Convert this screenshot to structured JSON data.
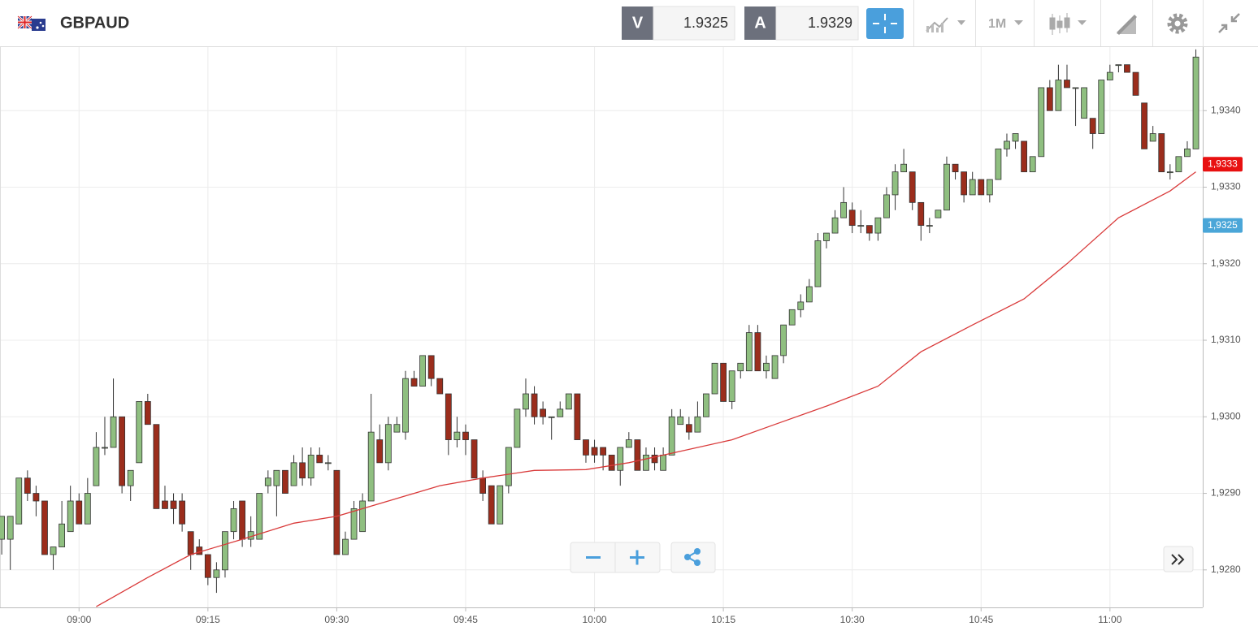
{
  "toolbar": {
    "symbol": "GBPAUD",
    "sell": {
      "label": "V",
      "price": "1.9325"
    },
    "buy": {
      "label": "A",
      "price": "1.9329"
    },
    "timeframe": "1M"
  },
  "chart_data": {
    "type": "candlestick",
    "categories": [
      null,
      null,
      null,
      null,
      null,
      null,
      null,
      null,
      null,
      "09:00",
      null,
      null,
      null,
      null,
      null,
      null,
      null,
      null,
      null,
      null,
      null,
      null,
      null,
      null,
      "09:15",
      null,
      null,
      null,
      null,
      null,
      null,
      null,
      null,
      null,
      null,
      null,
      null,
      null,
      null,
      "09:30",
      null,
      null,
      null,
      null,
      null,
      null,
      null,
      null,
      null,
      null,
      null,
      null,
      null,
      null,
      "09:45",
      null,
      null,
      null,
      null,
      null,
      null,
      null,
      null,
      null,
      null,
      null,
      null,
      null,
      null,
      "10:00",
      null,
      null,
      null,
      null,
      null,
      null,
      null,
      null,
      null,
      null,
      null,
      null,
      null,
      null,
      "10:15",
      null,
      null,
      null,
      null,
      null,
      null,
      null,
      null,
      null,
      null,
      null,
      null,
      null,
      null,
      "10:30",
      null,
      null,
      null,
      null,
      null,
      null,
      null,
      null,
      null,
      null,
      null,
      null,
      null,
      null,
      "10:45",
      null,
      null,
      null,
      null,
      null,
      null,
      null,
      null,
      null,
      null,
      null,
      null,
      null,
      null,
      "11:00",
      null,
      null,
      null,
      null,
      null,
      null,
      null,
      null,
      null,
      null
    ],
    "open": [
      1.9284,
      1.9284,
      1.9286,
      1.9292,
      1.929,
      1.9289,
      1.9282,
      1.9283,
      1.9285,
      1.9289,
      1.9286,
      1.9291,
      1.9296,
      1.9296,
      1.93,
      1.9291,
      1.9294,
      1.9302,
      1.9299,
      1.9289,
      1.9289,
      1.9289,
      1.9285,
      1.9283,
      1.9282,
      1.9279,
      1.928,
      1.9285,
      1.9289,
      1.9284,
      1.9284,
      1.9291,
      1.9291,
      1.9293,
      1.9291,
      1.9294,
      1.9292,
      1.9295,
      1.9294,
      1.9293,
      1.9282,
      1.9284,
      1.9285,
      1.9289,
      1.9297,
      1.9294,
      1.9298,
      1.9298,
      1.9305,
      1.9304,
      1.9308,
      1.9305,
      1.9303,
      1.9297,
      1.9298,
      1.9297,
      1.9292,
      1.9291,
      1.9286,
      1.9291,
      1.9296,
      1.9301,
      1.9303,
      1.9301,
      1.93,
      1.93,
      1.9301,
      1.9303,
      1.9297,
      1.9296,
      1.9296,
      1.9295,
      1.9293,
      1.9296,
      1.9297,
      1.9293,
      1.9295,
      1.9293,
      1.9295,
      1.9299,
      1.9299,
      1.9298,
      1.93,
      1.9303,
      1.9307,
      1.9302,
      1.9306,
      1.9306,
      1.9311,
      1.9306,
      1.9305,
      1.9308,
      1.9312,
      1.9314,
      1.9315,
      1.9317,
      1.9323,
      1.9324,
      1.9326,
      1.9327,
      1.9325,
      1.9325,
      1.9324,
      1.9326,
      1.9329,
      1.9332,
      1.9332,
      1.9328,
      1.9325,
      1.9326,
      1.9327,
      1.9333,
      1.9332,
      1.9329,
      1.9331,
      1.9329,
      1.9331,
      1.9335,
      1.9336,
      1.9336,
      1.9332,
      1.9334,
      1.9343,
      1.934,
      1.9344,
      1.9343,
      1.9339,
      1.9339,
      1.9337,
      1.9344,
      1.9346,
      1.9346,
      1.9345,
      1.9341,
      1.9336,
      1.9337,
      1.9332,
      1.9332,
      1.9334,
      1.9335
    ],
    "high": [
      1.9287,
      1.9287,
      1.9292,
      1.9293,
      1.9291,
      1.9289,
      1.9283,
      1.9289,
      1.9291,
      1.929,
      1.9292,
      1.9298,
      1.93,
      1.9305,
      1.93,
      1.9293,
      1.9302,
      1.9303,
      1.9299,
      1.9291,
      1.929,
      1.929,
      1.9285,
      1.9284,
      1.9282,
      1.9281,
      1.9285,
      1.9289,
      1.9289,
      1.9287,
      1.929,
      1.9293,
      1.9293,
      1.9293,
      1.9295,
      1.9296,
      1.9296,
      1.9296,
      1.9295,
      1.9293,
      1.9285,
      1.9289,
      1.929,
      1.9303,
      1.9299,
      1.93,
      1.93,
      1.9306,
      1.9306,
      1.9308,
      1.9308,
      1.9305,
      1.9303,
      1.93,
      1.9299,
      1.9297,
      1.9293,
      1.9291,
      1.9291,
      1.9296,
      1.9301,
      1.9305,
      1.9304,
      1.9302,
      1.93,
      1.9302,
      1.9303,
      1.9303,
      1.9297,
      1.9297,
      1.9296,
      1.9295,
      1.9296,
      1.9298,
      1.9297,
      1.9296,
      1.9296,
      1.9296,
      1.9301,
      1.9301,
      1.93,
      1.9302,
      1.9303,
      1.9307,
      1.9307,
      1.9306,
      1.9307,
      1.9312,
      1.9312,
      1.9308,
      1.9308,
      1.9312,
      1.9314,
      1.9316,
      1.9318,
      1.9324,
      1.9324,
      1.9327,
      1.933,
      1.9328,
      1.9327,
      1.9325,
      1.9326,
      1.933,
      1.9333,
      1.9335,
      1.9332,
      1.9328,
      1.9326,
      1.9327,
      1.9334,
      1.9333,
      1.9332,
      1.9332,
      1.9331,
      1.9331,
      1.9335,
      1.9337,
      1.9337,
      1.9336,
      1.9334,
      1.9343,
      1.9344,
      1.9346,
      1.9346,
      1.9343,
      1.9343,
      1.9339,
      1.9344,
      1.9346,
      1.9346,
      1.9346,
      1.9345,
      1.9341,
      1.9338,
      1.9337,
      1.9333,
      1.9334,
      1.9336,
      1.9348
    ],
    "low": [
      1.9282,
      1.928,
      1.9286,
      1.9289,
      1.9287,
      1.9282,
      1.928,
      1.9283,
      1.9285,
      1.9286,
      1.9286,
      1.9291,
      1.9295,
      1.9296,
      1.929,
      1.9289,
      1.9294,
      1.9299,
      1.9288,
      1.9288,
      1.9286,
      1.9285,
      1.928,
      1.9282,
      1.9278,
      1.9277,
      1.9279,
      1.9284,
      1.9283,
      1.9283,
      1.9284,
      1.929,
      1.9287,
      1.929,
      1.9291,
      1.9291,
      1.9291,
      1.9294,
      1.9293,
      1.9282,
      1.9282,
      1.9284,
      1.9285,
      1.9289,
      1.9294,
      1.9293,
      1.9298,
      1.9297,
      1.9304,
      1.9304,
      1.9304,
      1.9303,
      1.9295,
      1.9296,
      1.9295,
      1.9292,
      1.9289,
      1.9286,
      1.9286,
      1.929,
      1.9296,
      1.93,
      1.9299,
      1.9299,
      1.9297,
      1.93,
      1.9301,
      1.9297,
      1.9294,
      1.9294,
      1.9293,
      1.9293,
      1.9291,
      1.9296,
      1.9293,
      1.9293,
      1.9293,
      1.9293,
      1.9295,
      1.9299,
      1.9297,
      1.9298,
      1.93,
      1.9303,
      1.9302,
      1.9301,
      1.9305,
      1.9306,
      1.9306,
      1.9305,
      1.9305,
      1.9307,
      1.9312,
      1.9313,
      1.9315,
      1.9317,
      1.9322,
      1.9324,
      1.9326,
      1.9324,
      1.9324,
      1.9323,
      1.9323,
      1.9326,
      1.9327,
      1.9332,
      1.9327,
      1.9323,
      1.9324,
      1.9326,
      1.9327,
      1.9331,
      1.9328,
      1.9329,
      1.9329,
      1.9328,
      1.9331,
      1.9334,
      1.9335,
      1.9332,
      1.9332,
      1.9334,
      1.934,
      1.934,
      1.9343,
      1.9338,
      1.9339,
      1.9335,
      1.9337,
      1.9344,
      1.9345,
      1.9345,
      1.9342,
      1.9335,
      1.9336,
      1.9332,
      1.9331,
      1.9332,
      1.9334,
      1.9335
    ],
    "close": [
      1.9287,
      1.9287,
      1.9292,
      1.929,
      1.9289,
      1.9282,
      1.9283,
      1.9286,
      1.9289,
      1.9286,
      1.929,
      1.9296,
      1.9296,
      1.93,
      1.9291,
      1.9293,
      1.9302,
      1.9299,
      1.9288,
      1.9288,
      1.9288,
      1.9286,
      1.9282,
      1.9282,
      1.9279,
      1.928,
      1.9285,
      1.9288,
      1.9284,
      1.9285,
      1.929,
      1.9292,
      1.9293,
      1.929,
      1.9294,
      1.9292,
      1.9295,
      1.9294,
      1.9294,
      1.9282,
      1.9284,
      1.9288,
      1.9289,
      1.9298,
      1.9294,
      1.9299,
      1.9299,
      1.9305,
      1.9304,
      1.9308,
      1.9305,
      1.9303,
      1.9297,
      1.9298,
      1.9297,
      1.9292,
      1.929,
      1.9286,
      1.9291,
      1.9296,
      1.9301,
      1.9303,
      1.93,
      1.93,
      1.93,
      1.9301,
      1.9303,
      1.9297,
      1.9295,
      1.9295,
      1.9295,
      1.9293,
      1.9296,
      1.9297,
      1.9293,
      1.9295,
      1.9294,
      1.9295,
      1.93,
      1.93,
      1.9298,
      1.93,
      1.9303,
      1.9307,
      1.9302,
      1.9306,
      1.9307,
      1.9311,
      1.9306,
      1.9307,
      1.9308,
      1.9312,
      1.9314,
      1.9315,
      1.9317,
      1.9323,
      1.9324,
      1.9326,
      1.9328,
      1.9325,
      1.9325,
      1.9324,
      1.9326,
      1.9329,
      1.9332,
      1.9333,
      1.9328,
      1.9325,
      1.9325,
      1.9327,
      1.9333,
      1.9332,
      1.9329,
      1.9331,
      1.9329,
      1.9331,
      1.9335,
      1.9336,
      1.9337,
      1.9332,
      1.9334,
      1.9343,
      1.934,
      1.9344,
      1.9343,
      1.9343,
      1.9343,
      1.9337,
      1.9344,
      1.9345,
      1.9346,
      1.9345,
      1.9342,
      1.9335,
      1.9337,
      1.9332,
      1.9332,
      1.9334,
      1.9335,
      1.9347
    ],
    "up_color": "#8fbf80",
    "down_color": "#9b2d1c",
    "moving_average": {
      "color": "#d93a3a",
      "x": [
        11,
        17,
        22,
        28,
        34,
        39,
        45,
        51,
        56,
        62,
        68,
        73,
        79,
        85,
        90,
        96,
        102,
        107,
        113,
        119,
        124,
        130,
        136,
        139
      ],
      "values": [
        1.92752,
        1.9279,
        1.9282,
        1.9284,
        1.92861,
        1.9287,
        1.9289,
        1.9291,
        1.9292,
        1.9293,
        1.92931,
        1.9294,
        1.92955,
        1.9297,
        1.9299,
        1.93014,
        1.9304,
        1.93085,
        1.9312,
        1.93154,
        1.932,
        1.9326,
        1.93295,
        1.9332
      ]
    },
    "price_labels": [
      {
        "value": 1.9333,
        "label": "1,9333",
        "color": "#e81010"
      },
      {
        "value": 1.9325,
        "label": "1,9325",
        "color": "#4aa6d8"
      }
    ],
    "ylim": [
      1.92751,
      1.93483
    ],
    "yticks": [
      {
        "value": 1.928,
        "label": "1,9280"
      },
      {
        "value": 1.929,
        "label": "1,9290"
      },
      {
        "value": 1.93,
        "label": "1,9300"
      },
      {
        "value": 1.931,
        "label": "1,9310"
      },
      {
        "value": 1.932,
        "label": "1,9320"
      },
      {
        "value": 1.933,
        "label": "1,9330"
      },
      {
        "value": 1.934,
        "label": "1,9340"
      }
    ],
    "grid": true
  }
}
